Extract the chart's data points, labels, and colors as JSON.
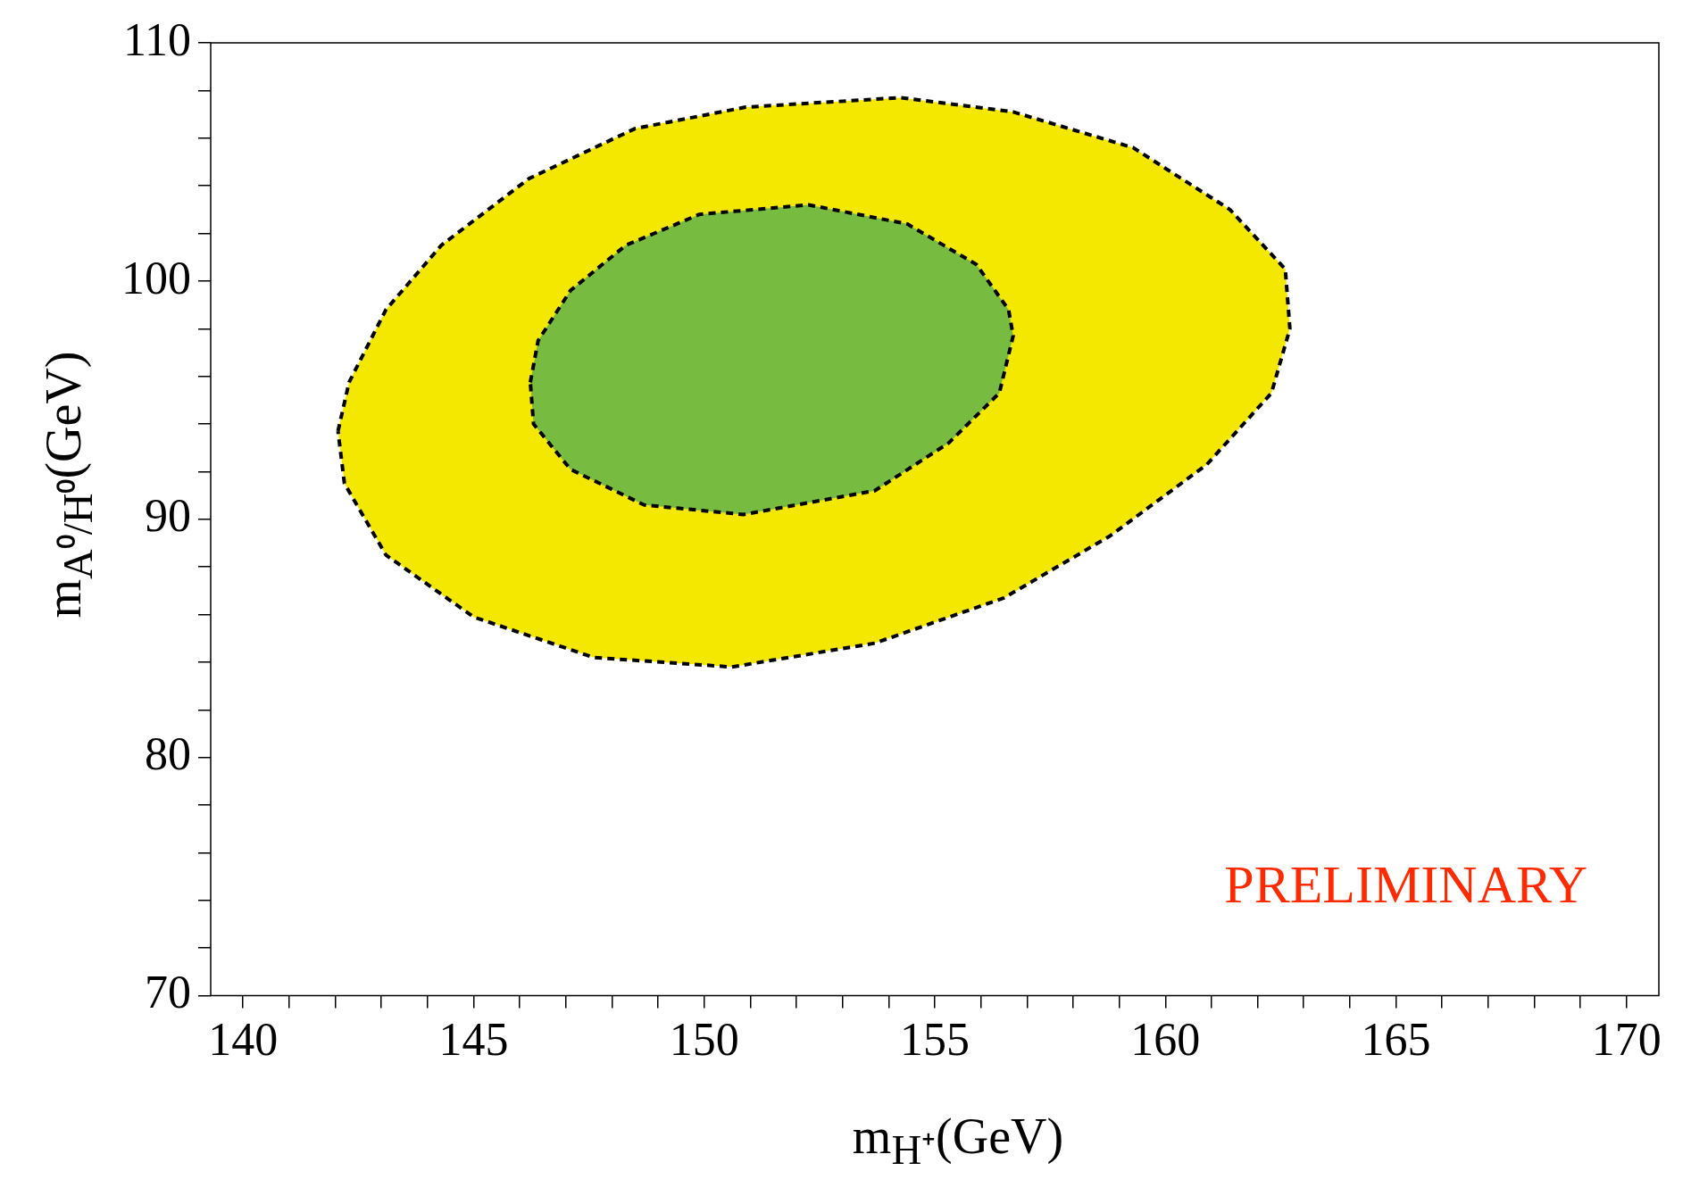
{
  "chart_data": {
    "type": "area",
    "xlabel": "m$_{H⁺}$(GeV)",
    "ylabel": "m$_{A⁰/H⁰}$(GeV)",
    "xlim": [
      139.3,
      170.7
    ],
    "ylim": [
      70,
      110
    ],
    "xticks": [
      140,
      {
        "value": 141,
        "label": null
      },
      {
        "value": 142,
        "label": null
      },
      {
        "value": 143,
        "label": null
      },
      {
        "value": 144,
        "label": null
      },
      145,
      {
        "value": 146,
        "label": null
      },
      {
        "value": 147,
        "label": null
      },
      {
        "value": 148,
        "label": null
      },
      {
        "value": 149,
        "label": null
      },
      150,
      {
        "value": 151,
        "label": null
      },
      {
        "value": 152,
        "label": null
      },
      {
        "value": 153,
        "label": null
      },
      {
        "value": 154,
        "label": null
      },
      155,
      {
        "value": 156,
        "label": null
      },
      {
        "value": 157,
        "label": null
      },
      {
        "value": 158,
        "label": null
      },
      {
        "value": 159,
        "label": null
      },
      160,
      {
        "value": 161,
        "label": null
      },
      {
        "value": 162,
        "label": null
      },
      {
        "value": 163,
        "label": null
      },
      {
        "value": 164,
        "label": null
      },
      165,
      {
        "value": 166,
        "label": null
      },
      {
        "value": 167,
        "label": null
      },
      {
        "value": 168,
        "label": null
      },
      {
        "value": 169,
        "label": null
      },
      170
    ],
    "yticks": [
      70,
      {
        "value": 72,
        "label": null
      },
      {
        "value": 74,
        "label": null
      },
      {
        "value": 76,
        "label": null
      },
      {
        "value": 78,
        "label": null
      },
      80,
      {
        "value": 82,
        "label": null
      },
      {
        "value": 84,
        "label": null
      },
      {
        "value": 86,
        "label": null
      },
      {
        "value": 88,
        "label": null
      },
      90,
      {
        "value": 92,
        "label": null
      },
      {
        "value": 94,
        "label": null
      },
      {
        "value": 96,
        "label": null
      },
      {
        "value": 98,
        "label": null
      },
      100,
      {
        "value": 102,
        "label": null
      },
      {
        "value": 104,
        "label": null
      },
      {
        "value": 106,
        "label": null
      },
      {
        "value": 108,
        "label": null
      },
      110
    ],
    "grid": false,
    "legend": false,
    "line_style": "dashed",
    "annotations": [
      "PRELIMINARY"
    ],
    "series": [
      {
        "color": "#f5e800",
        "x": [
          142.06,
          142.3,
          143.1,
          144.3,
          146.2,
          148.5,
          150.9,
          154.25,
          156.7,
          159.3,
          161.4,
          162.6,
          162.7,
          162.3,
          160.9,
          158.8,
          156.5,
          153.7,
          150.6,
          147.6,
          145.0,
          143.1,
          142.2,
          142.06
        ],
        "values": [
          93.7,
          95.75,
          98.8,
          101.5,
          104.3,
          106.4,
          107.3,
          107.7,
          107.1,
          105.6,
          103.0,
          100.5,
          98.0,
          95.3,
          92.3,
          89.3,
          86.7,
          84.8,
          83.8,
          84.2,
          85.9,
          88.5,
          91.5,
          93.7
        ]
      },
      {
        "color": "#77bb41",
        "x": [
          146.23,
          146.4,
          147.1,
          148.3,
          149.9,
          152.26,
          154.4,
          155.9,
          156.6,
          156.7,
          156.4,
          155.3,
          153.7,
          150.85,
          148.7,
          147.1,
          146.3,
          146.23
        ],
        "values": [
          95.75,
          97.5,
          99.6,
          101.5,
          102.8,
          103.2,
          102.4,
          100.7,
          98.8,
          97.7,
          95.3,
          93.2,
          91.2,
          90.2,
          90.6,
          92.1,
          94.0,
          95.75
        ]
      }
    ]
  }
}
